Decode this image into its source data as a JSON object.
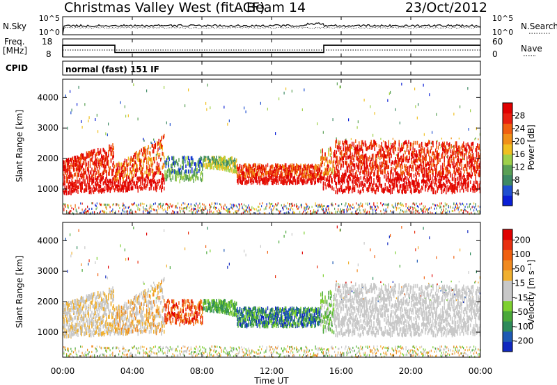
{
  "header": {
    "title": "Christmas Valley West (fitACF)",
    "beam": "Beam 14",
    "date": "23/Oct/2012"
  },
  "params": {
    "nsky_label": "N.Sky",
    "nsearch_label": "N.Search",
    "freq_label": [
      "Freq.",
      "[MHz]"
    ],
    "nave_label": "Nave",
    "cpid_label": "CPID",
    "cpid_value": "normal (fast) 151 IF",
    "noise_ticks": [
      "10^5",
      "10^0"
    ],
    "freq_ticks": [
      "18",
      "8"
    ],
    "nave_ticks": [
      "60",
      "0"
    ],
    "freq_mhz": [
      {
        "t0": 0,
        "t1": 3.0,
        "value": 14.5
      },
      {
        "t0": 3.0,
        "t1": 15.0,
        "value": 10.5
      },
      {
        "t0": 15.0,
        "t1": 24,
        "value": 14.5
      }
    ]
  },
  "chart_data": [
    {
      "type": "heatmap",
      "name": "power",
      "ylabel": "Slant Range [km]",
      "yticks": [
        "1000",
        "2000",
        "3000",
        "4000"
      ],
      "ylim": [
        180,
        4600
      ],
      "colorbar": {
        "label": "Power [dB]",
        "ticks": [
          "4",
          "8",
          "12",
          "16",
          "20",
          "24",
          "28"
        ],
        "range": [
          0,
          32
        ],
        "colors": [
          "#0a1fd6",
          "#1f4fd0",
          "#3e8a64",
          "#5aa055",
          "#9fd04a",
          "#f0c020",
          "#f09018",
          "#f06010",
          "#e82010",
          "#e00000"
        ]
      }
    },
    {
      "type": "heatmap",
      "name": "velocity",
      "ylabel": "Slant Range [km]",
      "yticks": [
        "1000",
        "2000",
        "3000",
        "4000"
      ],
      "ylim": [
        180,
        4600
      ],
      "colorbar": {
        "label": "Velocity [m s⁻¹]",
        "ticks": [
          "200",
          "100",
          "50",
          "15",
          "-15",
          "-50",
          "-100",
          "-200"
        ],
        "colors": [
          "#1028c0",
          "#1e5ab4",
          "#2e8a5a",
          "#4aa83a",
          "#7ed030",
          "#c8c8c8",
          "#c8c8c8",
          "#f0b030",
          "#f08a20",
          "#f06010",
          "#e83010",
          "#e00000"
        ]
      }
    }
  ],
  "xaxis": {
    "label": "Time UT",
    "ticks": [
      "00:00",
      "04:00",
      "08:00",
      "12:00",
      "16:00",
      "20:00",
      "00:00"
    ],
    "range_hours": [
      0,
      24
    ]
  }
}
